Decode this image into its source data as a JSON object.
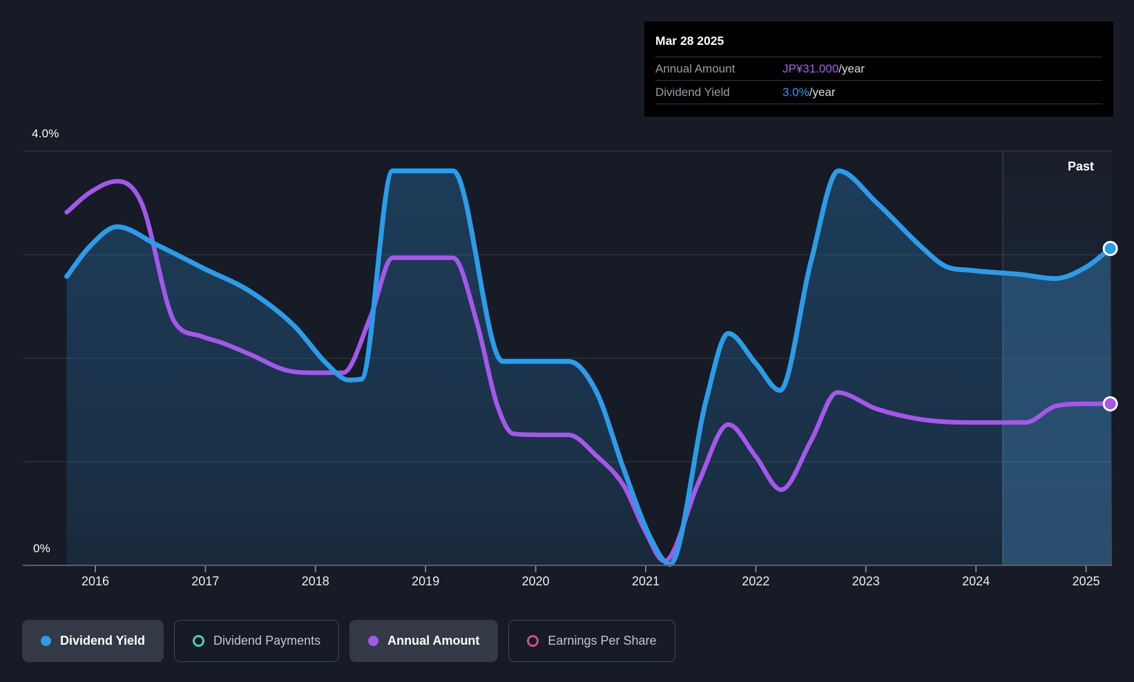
{
  "page": {
    "background": "#161b25"
  },
  "tooltip": {
    "date": "Mar 28 2025",
    "rows": [
      {
        "label": "Annual Amount",
        "value": "JP¥31.000",
        "suffix": "/year",
        "value_color": "#a55eec"
      },
      {
        "label": "Dividend Yield",
        "value": "3.0%",
        "suffix": "/year",
        "value_color": "#2c9cea"
      }
    ]
  },
  "y_axis": {
    "top_label": "4.0%",
    "bottom_label": "0%"
  },
  "x_axis": {
    "years": [
      "2016",
      "2017",
      "2018",
      "2019",
      "2020",
      "2021",
      "2022",
      "2023",
      "2024",
      "2025"
    ]
  },
  "past_label": "Past",
  "legend": {
    "items": [
      {
        "label": "Dividend Yield",
        "color": "#2d9ce8",
        "marker": "filled",
        "active": true
      },
      {
        "label": "Dividend Payments",
        "color": "#4ccfc0",
        "marker": "ring",
        "active": false
      },
      {
        "label": "Annual Amount",
        "color": "#a358ea",
        "marker": "filled",
        "active": true
      },
      {
        "label": "Earnings Per Share",
        "color": "#cf4d92",
        "marker": "ring",
        "active": false
      }
    ]
  },
  "chart_data": {
    "type": "line",
    "y_axis": {
      "unit": "%",
      "min": 0,
      "max": 4.0,
      "shown_tick_labels": [
        "4.0%",
        "0%"
      ],
      "gridline_values": [
        4,
        3,
        2,
        1,
        0
      ]
    },
    "x_axis": {
      "min": 2015.74,
      "max": 2025.25,
      "tick_years": [
        2016,
        2017,
        2018,
        2019,
        2020,
        2021,
        2022,
        2023,
        2024,
        2025
      ]
    },
    "past_region": {
      "label": "Past",
      "start": 2024.24,
      "end": 2025.25
    },
    "legend_position": "bottom",
    "grid": true,
    "series": [
      {
        "name": "Dividend Yield",
        "color": "#2d9ce8",
        "area_fill": true,
        "current_value": "3.0%/year",
        "points": [
          [
            2015.74,
            2.79
          ],
          [
            2015.95,
            3.08
          ],
          [
            2016.2,
            3.27
          ],
          [
            2016.55,
            3.1
          ],
          [
            2017.0,
            2.86
          ],
          [
            2017.4,
            2.65
          ],
          [
            2017.8,
            2.32
          ],
          [
            2018.1,
            1.95
          ],
          [
            2018.3,
            1.79
          ],
          [
            2018.42,
            1.8
          ],
          [
            2018.7,
            3.81
          ],
          [
            2019.0,
            3.81
          ],
          [
            2019.25,
            3.81
          ],
          [
            2019.7,
            1.97
          ],
          [
            2020.0,
            1.97
          ],
          [
            2020.3,
            1.97
          ],
          [
            2020.55,
            1.68
          ],
          [
            2020.8,
            0.93
          ],
          [
            2021.05,
            0.25
          ],
          [
            2021.22,
            0.01
          ],
          [
            2021.55,
            1.6
          ],
          [
            2021.75,
            2.24
          ],
          [
            2022.0,
            1.95
          ],
          [
            2022.22,
            1.69
          ],
          [
            2022.5,
            2.93
          ],
          [
            2022.75,
            3.81
          ],
          [
            2023.1,
            3.5
          ],
          [
            2023.5,
            3.08
          ],
          [
            2023.72,
            2.89
          ],
          [
            2023.95,
            2.85
          ],
          [
            2024.4,
            2.81
          ],
          [
            2024.72,
            2.77
          ],
          [
            2025.0,
            2.88
          ],
          [
            2025.22,
            3.06
          ]
        ]
      },
      {
        "name": "Annual Amount",
        "color": "#a358ea",
        "area_fill": false,
        "current_value": "JP¥31.000/year",
        "note": "plotted against a hidden currency axis; values given in displayed yield-axis units",
        "points": [
          [
            2015.74,
            3.41
          ],
          [
            2015.95,
            3.6
          ],
          [
            2016.2,
            3.71
          ],
          [
            2016.42,
            3.5
          ],
          [
            2016.72,
            2.35
          ],
          [
            2016.97,
            2.21
          ],
          [
            2017.15,
            2.15
          ],
          [
            2017.4,
            2.04
          ],
          [
            2017.75,
            1.88
          ],
          [
            2018.0,
            1.86
          ],
          [
            2018.25,
            1.86
          ],
          [
            2018.5,
            2.4
          ],
          [
            2018.7,
            2.97
          ],
          [
            2019.0,
            2.97
          ],
          [
            2019.25,
            2.97
          ],
          [
            2019.47,
            2.33
          ],
          [
            2019.65,
            1.55
          ],
          [
            2019.8,
            1.27
          ],
          [
            2020.05,
            1.26
          ],
          [
            2020.3,
            1.26
          ],
          [
            2020.55,
            1.06
          ],
          [
            2020.8,
            0.77
          ],
          [
            2021.0,
            0.32
          ],
          [
            2021.17,
            0.04
          ],
          [
            2021.48,
            0.8
          ],
          [
            2021.75,
            1.36
          ],
          [
            2022.0,
            1.05
          ],
          [
            2022.23,
            0.73
          ],
          [
            2022.5,
            1.2
          ],
          [
            2022.74,
            1.67
          ],
          [
            2023.1,
            1.51
          ],
          [
            2023.5,
            1.41
          ],
          [
            2023.95,
            1.38
          ],
          [
            2024.45,
            1.38
          ],
          [
            2024.73,
            1.54
          ],
          [
            2025.0,
            1.56
          ],
          [
            2025.22,
            1.56
          ]
        ]
      }
    ],
    "inactive_series": [
      "Dividend Payments",
      "Earnings Per Share"
    ]
  }
}
